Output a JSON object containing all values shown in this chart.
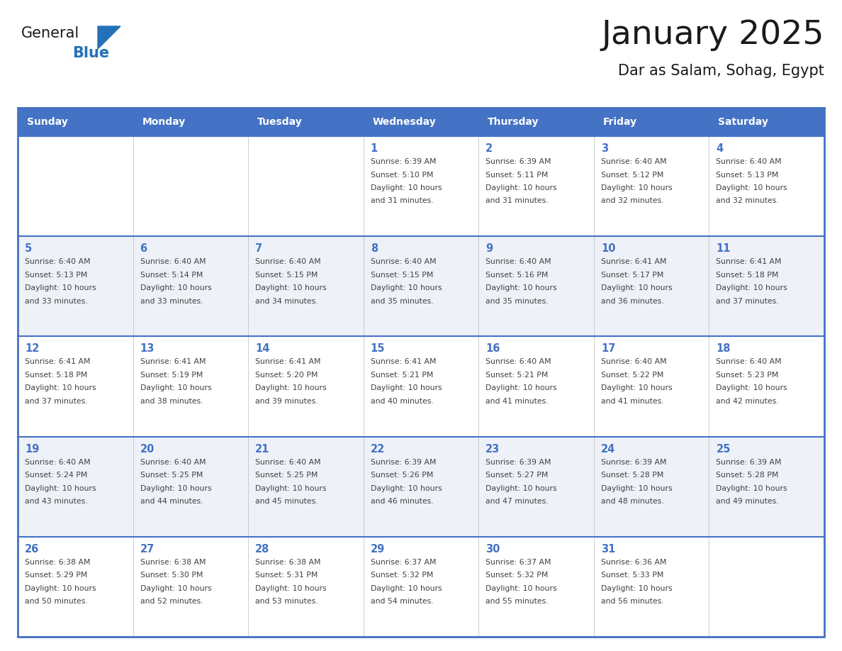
{
  "title": "January 2025",
  "subtitle": "Dar as Salam, Sohag, Egypt",
  "header_bg": "#4472C4",
  "header_text_color": "#FFFFFF",
  "row_bg_odd": "#FFFFFF",
  "row_bg_even": "#EEF2F8",
  "day_number_color": "#4472C4",
  "text_color": "#404040",
  "border_color": "#4472C4",
  "cell_border_color": "#AAAAAA",
  "days_of_week": [
    "Sunday",
    "Monday",
    "Tuesday",
    "Wednesday",
    "Thursday",
    "Friday",
    "Saturday"
  ],
  "calendar_data": [
    [
      {
        "day": "",
        "sunrise": "",
        "sunset": "",
        "daylight_min": ""
      },
      {
        "day": "",
        "sunrise": "",
        "sunset": "",
        "daylight_min": ""
      },
      {
        "day": "",
        "sunrise": "",
        "sunset": "",
        "daylight_min": ""
      },
      {
        "day": "1",
        "sunrise": "6:39 AM",
        "sunset": "5:10 PM",
        "daylight_min": "31"
      },
      {
        "day": "2",
        "sunrise": "6:39 AM",
        "sunset": "5:11 PM",
        "daylight_min": "31"
      },
      {
        "day": "3",
        "sunrise": "6:40 AM",
        "sunset": "5:12 PM",
        "daylight_min": "32"
      },
      {
        "day": "4",
        "sunrise": "6:40 AM",
        "sunset": "5:13 PM",
        "daylight_min": "32"
      }
    ],
    [
      {
        "day": "5",
        "sunrise": "6:40 AM",
        "sunset": "5:13 PM",
        "daylight_min": "33"
      },
      {
        "day": "6",
        "sunrise": "6:40 AM",
        "sunset": "5:14 PM",
        "daylight_min": "33"
      },
      {
        "day": "7",
        "sunrise": "6:40 AM",
        "sunset": "5:15 PM",
        "daylight_min": "34"
      },
      {
        "day": "8",
        "sunrise": "6:40 AM",
        "sunset": "5:15 PM",
        "daylight_min": "35"
      },
      {
        "day": "9",
        "sunrise": "6:40 AM",
        "sunset": "5:16 PM",
        "daylight_min": "35"
      },
      {
        "day": "10",
        "sunrise": "6:41 AM",
        "sunset": "5:17 PM",
        "daylight_min": "36"
      },
      {
        "day": "11",
        "sunrise": "6:41 AM",
        "sunset": "5:18 PM",
        "daylight_min": "37"
      }
    ],
    [
      {
        "day": "12",
        "sunrise": "6:41 AM",
        "sunset": "5:18 PM",
        "daylight_min": "37"
      },
      {
        "day": "13",
        "sunrise": "6:41 AM",
        "sunset": "5:19 PM",
        "daylight_min": "38"
      },
      {
        "day": "14",
        "sunrise": "6:41 AM",
        "sunset": "5:20 PM",
        "daylight_min": "39"
      },
      {
        "day": "15",
        "sunrise": "6:41 AM",
        "sunset": "5:21 PM",
        "daylight_min": "40"
      },
      {
        "day": "16",
        "sunrise": "6:40 AM",
        "sunset": "5:21 PM",
        "daylight_min": "41"
      },
      {
        "day": "17",
        "sunrise": "6:40 AM",
        "sunset": "5:22 PM",
        "daylight_min": "41"
      },
      {
        "day": "18",
        "sunrise": "6:40 AM",
        "sunset": "5:23 PM",
        "daylight_min": "42"
      }
    ],
    [
      {
        "day": "19",
        "sunrise": "6:40 AM",
        "sunset": "5:24 PM",
        "daylight_min": "43"
      },
      {
        "day": "20",
        "sunrise": "6:40 AM",
        "sunset": "5:25 PM",
        "daylight_min": "44"
      },
      {
        "day": "21",
        "sunrise": "6:40 AM",
        "sunset": "5:25 PM",
        "daylight_min": "45"
      },
      {
        "day": "22",
        "sunrise": "6:39 AM",
        "sunset": "5:26 PM",
        "daylight_min": "46"
      },
      {
        "day": "23",
        "sunrise": "6:39 AM",
        "sunset": "5:27 PM",
        "daylight_min": "47"
      },
      {
        "day": "24",
        "sunrise": "6:39 AM",
        "sunset": "5:28 PM",
        "daylight_min": "48"
      },
      {
        "day": "25",
        "sunrise": "6:39 AM",
        "sunset": "5:28 PM",
        "daylight_min": "49"
      }
    ],
    [
      {
        "day": "26",
        "sunrise": "6:38 AM",
        "sunset": "5:29 PM",
        "daylight_min": "50"
      },
      {
        "day": "27",
        "sunrise": "6:38 AM",
        "sunset": "5:30 PM",
        "daylight_min": "52"
      },
      {
        "day": "28",
        "sunrise": "6:38 AM",
        "sunset": "5:31 PM",
        "daylight_min": "53"
      },
      {
        "day": "29",
        "sunrise": "6:37 AM",
        "sunset": "5:32 PM",
        "daylight_min": "54"
      },
      {
        "day": "30",
        "sunrise": "6:37 AM",
        "sunset": "5:32 PM",
        "daylight_min": "55"
      },
      {
        "day": "31",
        "sunrise": "6:36 AM",
        "sunset": "5:33 PM",
        "daylight_min": "56"
      },
      {
        "day": "",
        "sunrise": "",
        "sunset": "",
        "daylight_min": ""
      }
    ]
  ],
  "logo_general_color": "#1a1a1a",
  "logo_blue_color": "#2471B8",
  "logo_triangle_color": "#2471B8"
}
